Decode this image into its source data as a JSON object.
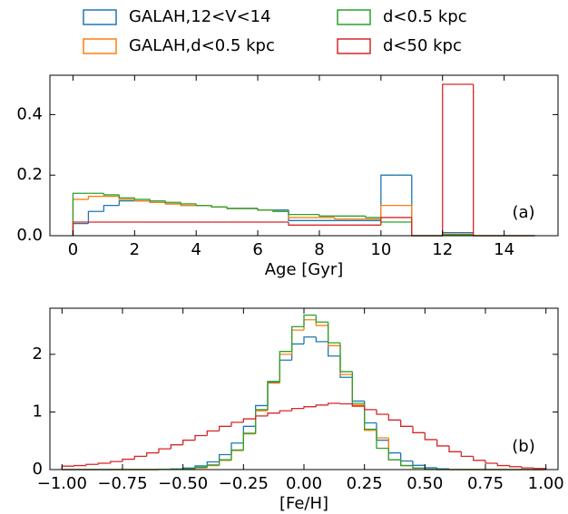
{
  "chart_data": [
    {
      "type": "step-histogram",
      "xlabel": "Age [Gyr]",
      "annotation": "(a)",
      "bins": [
        0,
        0.5,
        1,
        1.5,
        2,
        2.5,
        3,
        3.5,
        4,
        4.5,
        5,
        5.5,
        6,
        6.5,
        7,
        7.5,
        8,
        8.5,
        9,
        9.5,
        10,
        10.5,
        11,
        11.5,
        12,
        12.5,
        13,
        13.5,
        14,
        14.5,
        15
      ],
      "series": [
        {
          "name": "GALAH,12<V<14",
          "color": "#1f77b4",
          "values": [
            0.04,
            0.08,
            0.1,
            0.115,
            0.115,
            0.11,
            0.105,
            0.1,
            0.1,
            0.095,
            0.09,
            0.09,
            0.085,
            0.085,
            0.05,
            0.05,
            0.05,
            0.05,
            0.05,
            0.05,
            0.2,
            0.2,
            0,
            0,
            0.01,
            0.01,
            0,
            0,
            0,
            0
          ]
        },
        {
          "name": "GALAH,d<0.5 kpc",
          "color": "#ff7f0e",
          "values": [
            0.12,
            0.13,
            0.13,
            0.12,
            0.115,
            0.11,
            0.105,
            0.1,
            0.1,
            0.095,
            0.09,
            0.09,
            0.085,
            0.08,
            0.06,
            0.06,
            0.06,
            0.055,
            0.055,
            0.055,
            0.1,
            0.1,
            0,
            0,
            0.005,
            0.005,
            0,
            0,
            0,
            0
          ]
        },
        {
          "name": "d<0.5 kpc",
          "color": "#2ca02c",
          "values": [
            0.14,
            0.14,
            0.135,
            0.125,
            0.12,
            0.115,
            0.11,
            0.105,
            0.1,
            0.095,
            0.09,
            0.09,
            0.085,
            0.08,
            0.07,
            0.07,
            0.065,
            0.065,
            0.065,
            0.06,
            0.045,
            0.045,
            0,
            0,
            0.003,
            0.003,
            0,
            0,
            0,
            0
          ]
        },
        {
          "name": "d<50 kpc",
          "color": "#d62728",
          "values": [
            0.045,
            0.045,
            0.045,
            0.045,
            0.045,
            0.045,
            0.045,
            0.045,
            0.045,
            0.045,
            0.045,
            0.045,
            0.045,
            0.045,
            0.035,
            0.035,
            0.035,
            0.035,
            0.035,
            0.035,
            0.06,
            0.06,
            0,
            0,
            0.5,
            0.5,
            0,
            0,
            0,
            0
          ]
        }
      ],
      "xlim": [
        -0.75,
        15.75
      ],
      "xticks": [
        0,
        2,
        4,
        6,
        8,
        10,
        12,
        14
      ],
      "ylim": [
        0,
        0.53
      ],
      "yticks": [
        {
          "value": 0,
          "label": "0.0"
        },
        0.2,
        0.4
      ]
    },
    {
      "type": "step-histogram",
      "xlabel": "[Fe/H]",
      "annotation": "(b)",
      "bins": [
        -1,
        -0.95,
        -0.9,
        -0.85,
        -0.8,
        -0.75,
        -0.7,
        -0.65,
        -0.6,
        -0.55,
        -0.5,
        -0.45,
        -0.4,
        -0.35,
        -0.3,
        -0.25,
        -0.2,
        -0.15,
        -0.1,
        -0.05,
        0,
        0.05,
        0.1,
        0.15,
        0.2,
        0.25,
        0.3,
        0.35,
        0.4,
        0.45,
        0.5,
        0.55,
        0.6,
        0.65,
        0.7,
        0.75,
        0.8,
        0.85,
        0.9,
        0.95,
        1
      ],
      "series": [
        {
          "color": "#1f77b4",
          "values": [
            0,
            0,
            0,
            0,
            0,
            0,
            0,
            0,
            0.004,
            0.011,
            0.028,
            0.064,
            0.134,
            0.26,
            0.46,
            0.75,
            1.11,
            1.52,
            1.9,
            2.18,
            2.3,
            2.22,
            1.97,
            1.6,
            1.19,
            0.81,
            0.51,
            0.29,
            0.15,
            0.074,
            0.033,
            0.013,
            0,
            0,
            0,
            0,
            0,
            0,
            0,
            0
          ]
        },
        {
          "color": "#ff7f0e",
          "values": [
            0,
            0,
            0,
            0,
            0,
            0,
            0,
            0,
            0.002,
            0.004,
            0.01,
            0.03,
            0.07,
            0.16,
            0.33,
            0.62,
            1.02,
            1.5,
            2.0,
            2.42,
            2.6,
            2.5,
            2.15,
            1.65,
            1.12,
            0.68,
            0.55,
            0.17,
            0.07,
            0.025,
            0.008,
            0,
            0,
            0,
            0,
            0,
            0,
            0,
            0,
            0
          ]
        },
        {
          "color": "#2ca02c",
          "values": [
            0,
            0,
            0,
            0,
            0,
            0,
            0,
            0,
            0.003,
            0.006,
            0.015,
            0.04,
            0.08,
            0.17,
            0.34,
            0.63,
            1.04,
            1.53,
            2.05,
            2.48,
            2.68,
            2.56,
            2.2,
            1.7,
            1.15,
            0.7,
            0.37,
            0.17,
            0.07,
            0.025,
            0.008,
            0,
            0,
            0,
            0,
            0,
            0,
            0,
            0,
            0
          ]
        },
        {
          "color": "#d62728",
          "values": [
            0.06,
            0.07,
            0.09,
            0.11,
            0.14,
            0.18,
            0.23,
            0.29,
            0.36,
            0.43,
            0.51,
            0.59,
            0.67,
            0.75,
            0.82,
            0.88,
            0.93,
            0.98,
            1.02,
            1.06,
            1.09,
            1.12,
            1.15,
            1.14,
            1.1,
            1.04,
            0.96,
            0.86,
            0.75,
            0.64,
            0.52,
            0.41,
            0.31,
            0.23,
            0.16,
            0.11,
            0.07,
            0.05,
            0.03,
            0.02
          ]
        }
      ],
      "xlim": [
        -1.05,
        1.05
      ],
      "xticks": [
        {
          "value": -1,
          "label": "−1.00"
        },
        {
          "value": -0.75,
          "label": "−0.75"
        },
        {
          "value": -0.5,
          "label": "−0.50"
        },
        {
          "value": -0.25,
          "label": "−0.25"
        },
        {
          "value": 0,
          "label": "0.00"
        },
        {
          "value": 0.25,
          "label": "0.25"
        },
        {
          "value": 0.5,
          "label": "0.50"
        },
        {
          "value": 0.75,
          "label": "0.75"
        },
        {
          "value": 1,
          "label": "1.00"
        }
      ],
      "ylim": [
        0,
        2.8
      ],
      "yticks": [
        0,
        1,
        2
      ]
    }
  ]
}
